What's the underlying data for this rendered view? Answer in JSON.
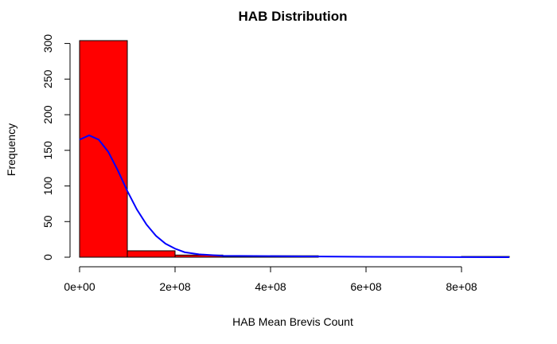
{
  "chart_data": {
    "type": "bar",
    "title": "HAB Distribution",
    "xlabel": "HAB Mean Brevis Count",
    "ylabel": "Frequency",
    "bin_edges": [
      0,
      100000000,
      200000000,
      300000000,
      400000000,
      500000000,
      600000000,
      700000000,
      800000000,
      900000000
    ],
    "values": [
      304,
      9,
      3,
      1,
      2,
      0,
      0,
      0,
      1
    ],
    "xlim": [
      0,
      900000000
    ],
    "ylim": [
      0,
      304
    ],
    "x_ticks": [
      0,
      200000000,
      400000000,
      600000000,
      800000000
    ],
    "x_tick_labels": [
      "0e+00",
      "2e+08",
      "4e+08",
      "6e+08",
      "8e+08"
    ],
    "y_ticks": [
      0,
      50,
      100,
      150,
      200,
      250,
      300
    ],
    "y_tick_labels": [
      "0",
      "50",
      "100",
      "150",
      "200",
      "250",
      "300"
    ],
    "bar_color": "#ff0000",
    "density_curve": {
      "color": "#0000ff",
      "points": [
        [
          0,
          165
        ],
        [
          20000000,
          171
        ],
        [
          40000000,
          165
        ],
        [
          60000000,
          148
        ],
        [
          80000000,
          122
        ],
        [
          100000000,
          93
        ],
        [
          120000000,
          67
        ],
        [
          140000000,
          46
        ],
        [
          160000000,
          30
        ],
        [
          180000000,
          19
        ],
        [
          200000000,
          12
        ],
        [
          220000000,
          7
        ],
        [
          250000000,
          4
        ],
        [
          300000000,
          2
        ],
        [
          400000000,
          1.5
        ],
        [
          500000000,
          1
        ],
        [
          600000000,
          0.6
        ],
        [
          700000000,
          0.4
        ],
        [
          800000000,
          0.2
        ],
        [
          900000000,
          0
        ]
      ]
    },
    "grid": false,
    "legend": "none"
  }
}
